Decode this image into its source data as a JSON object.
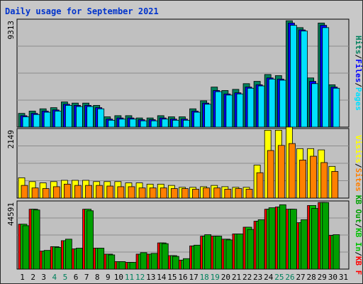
{
  "title": "Daily usage for September 2021",
  "colors": {
    "background": "#c8c8c8",
    "plot": "#c0c0c0",
    "hits": "#00805c",
    "files": "#0000ff",
    "pages": "#00e0ff",
    "visits": "#ffff00",
    "sites": "#ff8000",
    "kb_in": "#00c000",
    "kb_out": "#00a000",
    "kb_f": "#ff0000",
    "weekend_day": "#00805c",
    "weekday": "#000000"
  },
  "chart_data": [
    {
      "type": "bar",
      "name": "top-panel",
      "ymax_label": "9313",
      "ylim": [
        0,
        9313
      ],
      "legend": [
        "Hits",
        "Files",
        "Pages"
      ],
      "categories": [
        "1",
        "2",
        "3",
        "4",
        "5",
        "6",
        "7",
        "8",
        "9",
        "10",
        "11",
        "12",
        "13",
        "14",
        "15",
        "16",
        "17",
        "18",
        "19",
        "20",
        "21",
        "22",
        "23",
        "24",
        "25",
        "26",
        "27",
        "28",
        "29",
        "30",
        "31"
      ],
      "series": [
        {
          "name": "Hits",
          "values": [
            1200,
            1400,
            1600,
            1700,
            2200,
            2100,
            2100,
            1900,
            900,
            1000,
            1000,
            800,
            800,
            1000,
            900,
            900,
            1600,
            2300,
            3500,
            3200,
            3300,
            3800,
            4000,
            4600,
            4500,
            9300,
            8700,
            4300,
            9100,
            3700,
            0
          ]
        },
        {
          "name": "Files",
          "values": [
            1000,
            1200,
            1400,
            1500,
            2000,
            1900,
            1900,
            1700,
            700,
            800,
            800,
            650,
            650,
            800,
            700,
            700,
            1400,
            2100,
            3200,
            2900,
            3000,
            3500,
            3700,
            4300,
            4200,
            9100,
            8500,
            4000,
            8900,
            3500,
            0
          ]
        },
        {
          "name": "Pages",
          "values": [
            900,
            1100,
            1300,
            1400,
            1900,
            1800,
            1800,
            1600,
            600,
            700,
            700,
            550,
            550,
            700,
            600,
            600,
            1300,
            2000,
            3100,
            2800,
            2900,
            3400,
            3600,
            4200,
            4100,
            8900,
            8400,
            3800,
            8700,
            3400,
            0
          ]
        }
      ],
      "grid": true
    },
    {
      "type": "bar",
      "name": "middle-panel",
      "ymax_label": "2149",
      "ylim": [
        0,
        2149
      ],
      "legend": [
        "Visits",
        "Sites"
      ],
      "categories": [
        "1",
        "2",
        "3",
        "4",
        "5",
        "6",
        "7",
        "8",
        "9",
        "10",
        "11",
        "12",
        "13",
        "14",
        "15",
        "16",
        "17",
        "18",
        "19",
        "20",
        "21",
        "22",
        "23",
        "24",
        "25",
        "26",
        "27",
        "28",
        "29",
        "30",
        "31"
      ],
      "series": [
        {
          "name": "Visits",
          "values": [
            640,
            520,
            480,
            520,
            560,
            560,
            560,
            520,
            520,
            520,
            480,
            480,
            440,
            440,
            400,
            340,
            340,
            360,
            400,
            360,
            340,
            340,
            1040,
            2140,
            2140,
            2240,
            1560,
            1560,
            1520,
            1000,
            0
          ]
        },
        {
          "name": "Sites",
          "values": [
            400,
            320,
            300,
            360,
            440,
            400,
            400,
            400,
            380,
            360,
            360,
            320,
            320,
            320,
            300,
            300,
            280,
            320,
            320,
            280,
            300,
            280,
            800,
            1500,
            1660,
            1720,
            1200,
            1320,
            1120,
            840,
            0
          ]
        }
      ],
      "grid": true
    },
    {
      "type": "bar",
      "name": "bottom-panel",
      "ymax_label": "44591",
      "ylim": [
        0,
        44591
      ],
      "legend": [
        "KB F",
        "KB In",
        "KB Out"
      ],
      "categories": [
        "1",
        "2",
        "3",
        "4",
        "5",
        "6",
        "7",
        "8",
        "9",
        "10",
        "11",
        "12",
        "13",
        "14",
        "15",
        "16",
        "17",
        "18",
        "19",
        "20",
        "21",
        "22",
        "23",
        "24",
        "25",
        "26",
        "27",
        "28",
        "29",
        "30",
        "31"
      ],
      "series": [
        {
          "name": "KB F",
          "values": [
            30000,
            40000,
            12000,
            15000,
            19000,
            13500,
            40000,
            14000,
            10000,
            5000,
            4500,
            10000,
            10000,
            17500,
            9000,
            6000,
            15500,
            22000,
            22000,
            20000,
            23500,
            28000,
            32000,
            40000,
            41500,
            40000,
            31000,
            42500,
            44500,
            22500,
            0
          ]
        },
        {
          "name": "KB In",
          "values": [
            30000,
            40000,
            12000,
            15000,
            19000,
            13500,
            40000,
            14000,
            10000,
            5000,
            4500,
            10000,
            10000,
            17500,
            9000,
            6000,
            15500,
            22000,
            22000,
            20000,
            23500,
            28000,
            32000,
            40000,
            41500,
            40000,
            31000,
            42500,
            44500,
            22500,
            0
          ]
        },
        {
          "name": "KB Out",
          "values": [
            29000,
            39500,
            12500,
            14500,
            20000,
            14000,
            39000,
            14000,
            9500,
            5000,
            4500,
            11000,
            10500,
            17000,
            8500,
            7000,
            16000,
            23000,
            22000,
            19500,
            23500,
            26500,
            33000,
            41000,
            43000,
            40000,
            33000,
            40500,
            44500,
            23000,
            0
          ]
        }
      ],
      "grid": true
    }
  ],
  "x_axis": {
    "labels": [
      "1",
      "2",
      "3",
      "4",
      "5",
      "6",
      "7",
      "8",
      "9",
      "10",
      "11",
      "12",
      "13",
      "14",
      "15",
      "16",
      "17",
      "18",
      "19",
      "20",
      "21",
      "22",
      "23",
      "24",
      "25",
      "26",
      "27",
      "28",
      "29",
      "30",
      "31"
    ],
    "weekend_days": [
      "4",
      "5",
      "11",
      "12",
      "18",
      "19",
      "25",
      "26"
    ]
  }
}
